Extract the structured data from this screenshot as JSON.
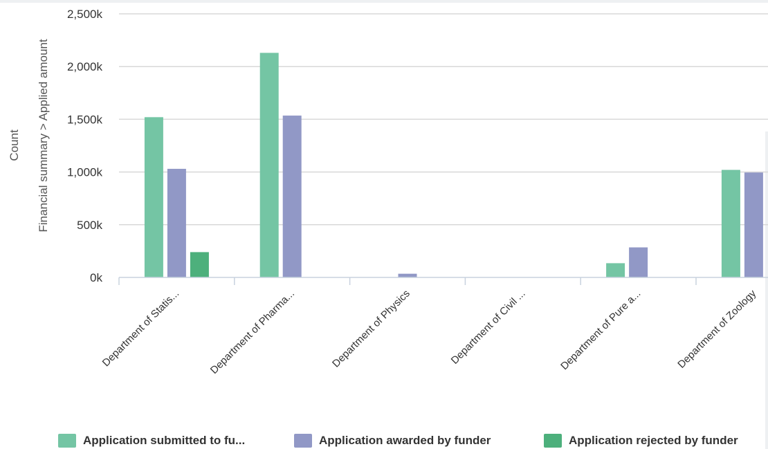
{
  "chart_data": {
    "type": "bar",
    "title": "",
    "xlabel": "",
    "ylabel": "Count",
    "ylabel2": "Financial summary > Applied amount",
    "ylim": [
      0,
      2500000
    ],
    "yticks": [
      {
        "value": 0,
        "label": "0k"
      },
      {
        "value": 500000,
        "label": "500k"
      },
      {
        "value": 1000000,
        "label": "1,000k"
      },
      {
        "value": 1500000,
        "label": "1,500k"
      },
      {
        "value": 2000000,
        "label": "2,000k"
      },
      {
        "value": 2500000,
        "label": "2,500k"
      }
    ],
    "grid": true,
    "legend_position": "bottom",
    "categories": [
      "Department of Statis...",
      "Department of Pharma...",
      "Department of Physics",
      "Department of Civil ...",
      "Department of Pure a...",
      "Department of Zoology"
    ],
    "series": [
      {
        "name": "Application submitted to fu...",
        "color": "#74c5a4",
        "values": [
          1520000,
          2130000,
          0,
          0,
          135000,
          1020000
        ]
      },
      {
        "name": "Application awarded by funder",
        "color": "#9198c6",
        "values": [
          1030000,
          1535000,
          35000,
          0,
          285000,
          995000
        ]
      },
      {
        "name": "Application rejected by funder",
        "color": "#4db07c",
        "values": [
          240000,
          0,
          0,
          0,
          0,
          0
        ]
      }
    ]
  }
}
